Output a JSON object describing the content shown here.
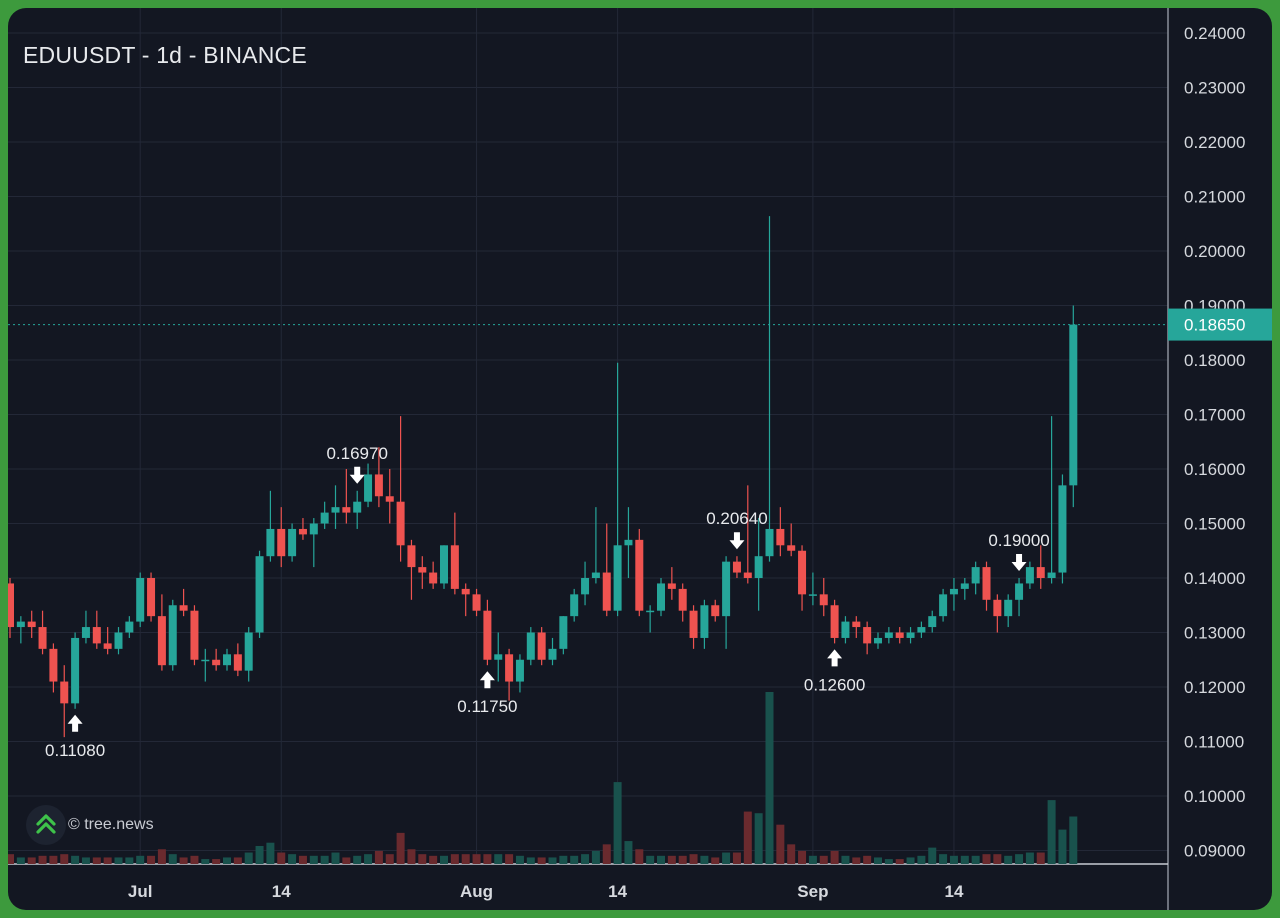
{
  "chart_data": {
    "type": "candlestick",
    "title": "EDUUSDT - 1d - BINANCE",
    "symbol": "EDUUSDT",
    "interval": "1d",
    "exchange": "BINANCE",
    "x_tick_labels": [
      {
        "label": "Jul",
        "date": "Jul 1"
      },
      {
        "label": "14",
        "date": "Jul 14"
      },
      {
        "label": "Aug",
        "date": "Aug 1"
      },
      {
        "label": "14",
        "date": "Aug 14"
      },
      {
        "label": "Sep",
        "date": "Sep 1"
      },
      {
        "label": "14",
        "date": "Sep 14"
      }
    ],
    "y_tick_labels": [
      "0.24000",
      "0.23000",
      "0.22000",
      "0.21000",
      "0.20000",
      "0.19000",
      "0.18000",
      "0.17000",
      "0.16000",
      "0.15000",
      "0.14000",
      "0.13000",
      "0.12000",
      "0.11000",
      "0.10000",
      "0.09000"
    ],
    "ylim": [
      0.085,
      0.2445
    ],
    "last_price": "0.18650",
    "annotations": [
      {
        "date": "Jun 25",
        "text": "0.11080",
        "type": "low"
      },
      {
        "date": "Jul 21",
        "text": "0.16970",
        "type": "high"
      },
      {
        "date": "Aug 2",
        "text": "0.11750",
        "type": "low"
      },
      {
        "date": "Aug 25",
        "text": "0.20640",
        "type": "high"
      },
      {
        "date": "Sep 3",
        "text": "0.12600",
        "type": "low"
      },
      {
        "date": "Sep 20",
        "text": "0.19000",
        "type": "high"
      }
    ],
    "candles": [
      {
        "date": "Jun 19",
        "o": 0.139,
        "h": 0.14,
        "l": 0.129,
        "c": 0.131,
        "v": 0.6
      },
      {
        "date": "Jun 20",
        "o": 0.131,
        "h": 0.133,
        "l": 0.128,
        "c": 0.132,
        "v": 0.4
      },
      {
        "date": "Jun 21",
        "o": 0.132,
        "h": 0.134,
        "l": 0.129,
        "c": 0.131,
        "v": 0.4
      },
      {
        "date": "Jun 22",
        "o": 0.131,
        "h": 0.134,
        "l": 0.126,
        "c": 0.127,
        "v": 0.5
      },
      {
        "date": "Jun 23",
        "o": 0.127,
        "h": 0.128,
        "l": 0.119,
        "c": 0.121,
        "v": 0.5
      },
      {
        "date": "Jun 24",
        "o": 0.121,
        "h": 0.124,
        "l": 0.1108,
        "c": 0.117,
        "v": 0.6
      },
      {
        "date": "Jun 25",
        "o": 0.117,
        "h": 0.13,
        "l": 0.116,
        "c": 0.129,
        "v": 0.5
      },
      {
        "date": "Jun 26",
        "o": 0.129,
        "h": 0.134,
        "l": 0.128,
        "c": 0.131,
        "v": 0.4
      },
      {
        "date": "Jun 27",
        "o": 0.131,
        "h": 0.134,
        "l": 0.127,
        "c": 0.128,
        "v": 0.4
      },
      {
        "date": "Jun 28",
        "o": 0.128,
        "h": 0.131,
        "l": 0.126,
        "c": 0.127,
        "v": 0.4
      },
      {
        "date": "Jun 29",
        "o": 0.127,
        "h": 0.131,
        "l": 0.126,
        "c": 0.13,
        "v": 0.4
      },
      {
        "date": "Jun 30",
        "o": 0.13,
        "h": 0.133,
        "l": 0.129,
        "c": 0.132,
        "v": 0.4
      },
      {
        "date": "Jul 1",
        "o": 0.132,
        "h": 0.141,
        "l": 0.131,
        "c": 0.14,
        "v": 0.5
      },
      {
        "date": "Jul 2",
        "o": 0.14,
        "h": 0.141,
        "l": 0.132,
        "c": 0.133,
        "v": 0.5
      },
      {
        "date": "Jul 3",
        "o": 0.133,
        "h": 0.137,
        "l": 0.123,
        "c": 0.124,
        "v": 0.9
      },
      {
        "date": "Jul 4",
        "o": 0.124,
        "h": 0.136,
        "l": 0.123,
        "c": 0.135,
        "v": 0.6
      },
      {
        "date": "Jul 5",
        "o": 0.135,
        "h": 0.138,
        "l": 0.133,
        "c": 0.134,
        "v": 0.4
      },
      {
        "date": "Jul 6",
        "o": 0.134,
        "h": 0.135,
        "l": 0.124,
        "c": 0.125,
        "v": 0.5
      },
      {
        "date": "Jul 7",
        "o": 0.125,
        "h": 0.127,
        "l": 0.121,
        "c": 0.125,
        "v": 0.3
      },
      {
        "date": "Jul 8",
        "o": 0.125,
        "h": 0.127,
        "l": 0.123,
        "c": 0.124,
        "v": 0.3
      },
      {
        "date": "Jul 9",
        "o": 0.124,
        "h": 0.127,
        "l": 0.123,
        "c": 0.126,
        "v": 0.4
      },
      {
        "date": "Jul 10",
        "o": 0.126,
        "h": 0.128,
        "l": 0.122,
        "c": 0.123,
        "v": 0.4
      },
      {
        "date": "Jul 11",
        "o": 0.123,
        "h": 0.131,
        "l": 0.121,
        "c": 0.13,
        "v": 0.7
      },
      {
        "date": "Jul 12",
        "o": 0.13,
        "h": 0.145,
        "l": 0.129,
        "c": 0.144,
        "v": 1.1
      },
      {
        "date": "Jul 13",
        "o": 0.144,
        "h": 0.156,
        "l": 0.143,
        "c": 0.149,
        "v": 1.3
      },
      {
        "date": "Jul 14",
        "o": 0.149,
        "h": 0.153,
        "l": 0.142,
        "c": 0.144,
        "v": 0.7
      },
      {
        "date": "Jul 15",
        "o": 0.144,
        "h": 0.15,
        "l": 0.143,
        "c": 0.149,
        "v": 0.6
      },
      {
        "date": "Jul 16",
        "o": 0.149,
        "h": 0.151,
        "l": 0.147,
        "c": 0.148,
        "v": 0.5
      },
      {
        "date": "Jul 17",
        "o": 0.148,
        "h": 0.151,
        "l": 0.142,
        "c": 0.15,
        "v": 0.5
      },
      {
        "date": "Jul 18",
        "o": 0.15,
        "h": 0.154,
        "l": 0.149,
        "c": 0.152,
        "v": 0.5
      },
      {
        "date": "Jul 19",
        "o": 0.152,
        "h": 0.157,
        "l": 0.149,
        "c": 0.153,
        "v": 0.7
      },
      {
        "date": "Jul 20",
        "o": 0.153,
        "h": 0.16,
        "l": 0.15,
        "c": 0.152,
        "v": 0.4
      },
      {
        "date": "Jul 21",
        "o": 0.152,
        "h": 0.156,
        "l": 0.149,
        "c": 0.154,
        "v": 0.5
      },
      {
        "date": "Jul 22",
        "o": 0.154,
        "h": 0.161,
        "l": 0.153,
        "c": 0.159,
        "v": 0.6
      },
      {
        "date": "Jul 23",
        "o": 0.159,
        "h": 0.164,
        "l": 0.153,
        "c": 0.155,
        "v": 0.8
      },
      {
        "date": "Jul 24",
        "o": 0.155,
        "h": 0.16,
        "l": 0.15,
        "c": 0.154,
        "v": 0.6
      },
      {
        "date": "Jul 25",
        "o": 0.154,
        "h": 0.1697,
        "l": 0.143,
        "c": 0.146,
        "v": 1.9
      },
      {
        "date": "Jul 26",
        "o": 0.146,
        "h": 0.147,
        "l": 0.136,
        "c": 0.142,
        "v": 0.9
      },
      {
        "date": "Jul 27",
        "o": 0.142,
        "h": 0.144,
        "l": 0.138,
        "c": 0.141,
        "v": 0.6
      },
      {
        "date": "Jul 28",
        "o": 0.141,
        "h": 0.143,
        "l": 0.138,
        "c": 0.139,
        "v": 0.5
      },
      {
        "date": "Jul 29",
        "o": 0.139,
        "h": 0.146,
        "l": 0.138,
        "c": 0.146,
        "v": 0.5
      },
      {
        "date": "Jul 30",
        "o": 0.146,
        "h": 0.152,
        "l": 0.137,
        "c": 0.138,
        "v": 0.6
      },
      {
        "date": "Jul 31",
        "o": 0.138,
        "h": 0.139,
        "l": 0.133,
        "c": 0.137,
        "v": 0.6
      },
      {
        "date": "Aug 1",
        "o": 0.137,
        "h": 0.138,
        "l": 0.133,
        "c": 0.134,
        "v": 0.6
      },
      {
        "date": "Aug 2",
        "o": 0.134,
        "h": 0.136,
        "l": 0.124,
        "c": 0.125,
        "v": 0.6
      },
      {
        "date": "Aug 3",
        "o": 0.125,
        "h": 0.13,
        "l": 0.121,
        "c": 0.126,
        "v": 0.6
      },
      {
        "date": "Aug 4",
        "o": 0.126,
        "h": 0.127,
        "l": 0.1175,
        "c": 0.121,
        "v": 0.6
      },
      {
        "date": "Aug 5",
        "o": 0.121,
        "h": 0.126,
        "l": 0.119,
        "c": 0.125,
        "v": 0.5
      },
      {
        "date": "Aug 6",
        "o": 0.125,
        "h": 0.131,
        "l": 0.124,
        "c": 0.13,
        "v": 0.4
      },
      {
        "date": "Aug 7",
        "o": 0.13,
        "h": 0.131,
        "l": 0.124,
        "c": 0.125,
        "v": 0.4
      },
      {
        "date": "Aug 8",
        "o": 0.125,
        "h": 0.129,
        "l": 0.124,
        "c": 0.127,
        "v": 0.4
      },
      {
        "date": "Aug 9",
        "o": 0.127,
        "h": 0.133,
        "l": 0.126,
        "c": 0.133,
        "v": 0.5
      },
      {
        "date": "Aug 10",
        "o": 0.133,
        "h": 0.138,
        "l": 0.132,
        "c": 0.137,
        "v": 0.5
      },
      {
        "date": "Aug 11",
        "o": 0.137,
        "h": 0.143,
        "l": 0.135,
        "c": 0.14,
        "v": 0.6
      },
      {
        "date": "Aug 12",
        "o": 0.14,
        "h": 0.153,
        "l": 0.139,
        "c": 0.141,
        "v": 0.8
      },
      {
        "date": "Aug 13",
        "o": 0.141,
        "h": 0.15,
        "l": 0.133,
        "c": 0.134,
        "v": 1.2
      },
      {
        "date": "Aug 14",
        "o": 0.134,
        "h": 0.1795,
        "l": 0.133,
        "c": 0.146,
        "v": 5.0
      },
      {
        "date": "Aug 15",
        "o": 0.146,
        "h": 0.153,
        "l": 0.14,
        "c": 0.147,
        "v": 1.4
      },
      {
        "date": "Aug 16",
        "o": 0.147,
        "h": 0.149,
        "l": 0.133,
        "c": 0.134,
        "v": 0.9
      },
      {
        "date": "Aug 17",
        "o": 0.134,
        "h": 0.135,
        "l": 0.13,
        "c": 0.134,
        "v": 0.5
      },
      {
        "date": "Aug 18",
        "o": 0.134,
        "h": 0.14,
        "l": 0.133,
        "c": 0.139,
        "v": 0.5
      },
      {
        "date": "Aug 19",
        "o": 0.139,
        "h": 0.142,
        "l": 0.136,
        "c": 0.138,
        "v": 0.5
      },
      {
        "date": "Aug 20",
        "o": 0.138,
        "h": 0.139,
        "l": 0.132,
        "c": 0.134,
        "v": 0.5
      },
      {
        "date": "Aug 21",
        "o": 0.134,
        "h": 0.135,
        "l": 0.127,
        "c": 0.129,
        "v": 0.6
      },
      {
        "date": "Aug 22",
        "o": 0.129,
        "h": 0.136,
        "l": 0.127,
        "c": 0.135,
        "v": 0.5
      },
      {
        "date": "Aug 23",
        "o": 0.135,
        "h": 0.136,
        "l": 0.132,
        "c": 0.133,
        "v": 0.4
      },
      {
        "date": "Aug 24",
        "o": 0.133,
        "h": 0.144,
        "l": 0.127,
        "c": 0.143,
        "v": 0.7
      },
      {
        "date": "Aug 25",
        "o": 0.143,
        "h": 0.144,
        "l": 0.14,
        "c": 0.141,
        "v": 0.7
      },
      {
        "date": "Aug 26",
        "o": 0.141,
        "h": 0.157,
        "l": 0.139,
        "c": 0.14,
        "v": 3.2
      },
      {
        "date": "Aug 27",
        "o": 0.14,
        "h": 0.151,
        "l": 0.134,
        "c": 0.144,
        "v": 3.1
      },
      {
        "date": "Aug 28",
        "o": 0.144,
        "h": 0.2064,
        "l": 0.143,
        "c": 0.149,
        "v": 10.5
      },
      {
        "date": "Aug 29",
        "o": 0.149,
        "h": 0.153,
        "l": 0.144,
        "c": 0.146,
        "v": 2.4
      },
      {
        "date": "Aug 30",
        "o": 0.146,
        "h": 0.15,
        "l": 0.144,
        "c": 0.145,
        "v": 1.2
      },
      {
        "date": "Aug 31",
        "o": 0.145,
        "h": 0.146,
        "l": 0.134,
        "c": 0.137,
        "v": 0.8
      },
      {
        "date": "Sep 1",
        "o": 0.137,
        "h": 0.141,
        "l": 0.135,
        "c": 0.137,
        "v": 0.5
      },
      {
        "date": "Sep 2",
        "o": 0.137,
        "h": 0.14,
        "l": 0.133,
        "c": 0.135,
        "v": 0.5
      },
      {
        "date": "Sep 3",
        "o": 0.135,
        "h": 0.136,
        "l": 0.128,
        "c": 0.129,
        "v": 0.8
      },
      {
        "date": "Sep 4",
        "o": 0.129,
        "h": 0.133,
        "l": 0.128,
        "c": 0.132,
        "v": 0.5
      },
      {
        "date": "Sep 5",
        "o": 0.132,
        "h": 0.133,
        "l": 0.129,
        "c": 0.131,
        "v": 0.4
      },
      {
        "date": "Sep 6",
        "o": 0.131,
        "h": 0.132,
        "l": 0.126,
        "c": 0.128,
        "v": 0.5
      },
      {
        "date": "Sep 7",
        "o": 0.128,
        "h": 0.13,
        "l": 0.127,
        "c": 0.129,
        "v": 0.4
      },
      {
        "date": "Sep 8",
        "o": 0.129,
        "h": 0.131,
        "l": 0.128,
        "c": 0.13,
        "v": 0.3
      },
      {
        "date": "Sep 9",
        "o": 0.13,
        "h": 0.131,
        "l": 0.128,
        "c": 0.129,
        "v": 0.3
      },
      {
        "date": "Sep 10",
        "o": 0.129,
        "h": 0.131,
        "l": 0.128,
        "c": 0.13,
        "v": 0.4
      },
      {
        "date": "Sep 11",
        "o": 0.13,
        "h": 0.132,
        "l": 0.129,
        "c": 0.131,
        "v": 0.5
      },
      {
        "date": "Sep 12",
        "o": 0.131,
        "h": 0.134,
        "l": 0.13,
        "c": 0.133,
        "v": 1.0
      },
      {
        "date": "Sep 13",
        "o": 0.133,
        "h": 0.138,
        "l": 0.132,
        "c": 0.137,
        "v": 0.6
      },
      {
        "date": "Sep 14",
        "o": 0.137,
        "h": 0.14,
        "l": 0.134,
        "c": 0.138,
        "v": 0.5
      },
      {
        "date": "Sep 15",
        "o": 0.138,
        "h": 0.14,
        "l": 0.136,
        "c": 0.139,
        "v": 0.5
      },
      {
        "date": "Sep 16",
        "o": 0.139,
        "h": 0.143,
        "l": 0.137,
        "c": 0.142,
        "v": 0.5
      },
      {
        "date": "Sep 17",
        "o": 0.142,
        "h": 0.143,
        "l": 0.134,
        "c": 0.136,
        "v": 0.6
      },
      {
        "date": "Sep 18",
        "o": 0.136,
        "h": 0.137,
        "l": 0.13,
        "c": 0.133,
        "v": 0.6
      },
      {
        "date": "Sep 19",
        "o": 0.133,
        "h": 0.137,
        "l": 0.131,
        "c": 0.136,
        "v": 0.5
      },
      {
        "date": "Sep 20",
        "o": 0.136,
        "h": 0.14,
        "l": 0.133,
        "c": 0.139,
        "v": 0.6
      },
      {
        "date": "Sep 21",
        "o": 0.139,
        "h": 0.143,
        "l": 0.138,
        "c": 0.142,
        "v": 0.7
      },
      {
        "date": "Sep 22",
        "o": 0.142,
        "h": 0.146,
        "l": 0.138,
        "c": 0.14,
        "v": 0.7
      },
      {
        "date": "Sep 23",
        "o": 0.14,
        "h": 0.1697,
        "l": 0.139,
        "c": 0.141,
        "v": 3.9
      },
      {
        "date": "Sep 24",
        "o": 0.141,
        "h": 0.159,
        "l": 0.139,
        "c": 0.157,
        "v": 2.1
      },
      {
        "date": "Sep 25",
        "o": 0.157,
        "h": 0.19,
        "l": 0.153,
        "c": 0.1865,
        "v": 2.9
      }
    ],
    "colors": {
      "up": "#26a69a",
      "down": "#ef5350",
      "volume_up": "#19524d",
      "volume_down": "#6a2a2e",
      "grid": "#232837",
      "axis_text": "#d6d9de",
      "price_label_bg": "#26a69a",
      "background": "#131722",
      "frame": "#3d9a3d"
    },
    "grid": true,
    "legend": "none"
  },
  "watermark": {
    "text": "© tree.news",
    "icon": "tree-news-logo-icon"
  }
}
